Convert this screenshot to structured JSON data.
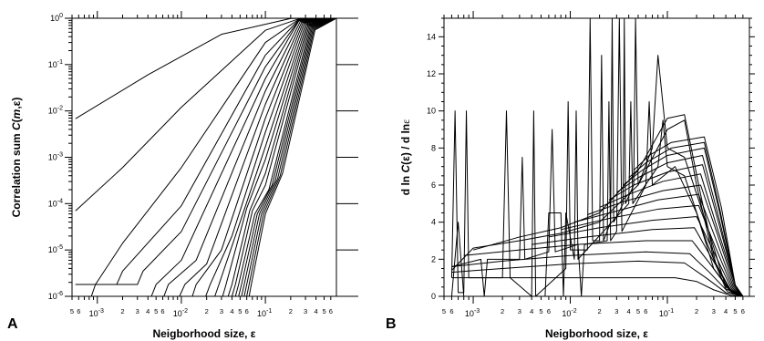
{
  "chart_data": [
    {
      "type": "line",
      "panel_label": "A",
      "xlabel": "Neigborhood size, ε",
      "ylabel": "Correlation sum C(m,ε)",
      "ylabel_parts": [
        "Correlation sum ",
        "C",
        "(",
        "m",
        ",ε)"
      ],
      "x_scale": "log",
      "y_scale": "log",
      "xlim": [
        0.0005,
        0.7
      ],
      "ylim": [
        1e-06,
        1
      ],
      "x_tick_labels": [
        {
          "value": 0.001,
          "base": "10",
          "exp": "-3"
        },
        {
          "value": 0.01,
          "base": "10",
          "exp": "-2"
        },
        {
          "value": 0.1,
          "base": "10",
          "exp": "-1"
        }
      ],
      "x_minor_labels": [
        "2",
        "3",
        "4",
        "5",
        "6"
      ],
      "y_tick_labels": [
        {
          "value": 1e-06,
          "base": "10",
          "exp": "-6"
        },
        {
          "value": 1e-05,
          "base": "10",
          "exp": "-5"
        },
        {
          "value": 0.0001,
          "base": "10",
          "exp": "-4"
        },
        {
          "value": 0.001,
          "base": "10",
          "exp": "-3"
        },
        {
          "value": 0.01,
          "base": "10",
          "exp": "-2"
        },
        {
          "value": 0.1,
          "base": "10",
          "exp": "-1"
        },
        {
          "value": 1,
          "base": "10",
          "exp": "0"
        }
      ],
      "grid": false,
      "curves_note": "20 correlation-sum curves for embedding dimensions m = 1..20; estimated anchor points in data units",
      "series": [
        {
          "x": [
            0.00055,
            0.004,
            0.03,
            0.2,
            0.7
          ],
          "y": [
            0.0068,
            0.06,
            0.45,
            0.99,
            1
          ]
        },
        {
          "x": [
            0.00055,
            0.002,
            0.01,
            0.1,
            0.25,
            0.7
          ],
          "y": [
            7e-05,
            0.0006,
            0.012,
            0.55,
            0.97,
            1
          ]
        },
        {
          "x": [
            0.00055,
            0.00085,
            0.00095,
            0.002,
            0.01,
            0.1,
            0.25,
            0.7
          ],
          "y": [
            1e-06,
            1e-06,
            1.8e-06,
            1.4e-05,
            0.0006,
            0.3,
            0.95,
            1
          ]
        },
        {
          "x": [
            0.00055,
            0.0017,
            0.002,
            0.01,
            0.1,
            0.25,
            0.7
          ],
          "y": [
            1.8e-06,
            1.8e-06,
            3.5e-06,
            9e-05,
            0.16,
            0.93,
            1
          ]
        },
        {
          "x": [
            0.00055,
            0.003,
            0.0035,
            0.01,
            0.1,
            0.25,
            0.7
          ],
          "y": [
            1.8e-06,
            1.8e-06,
            3.5e-06,
            2.5e-05,
            0.09,
            0.9,
            1
          ]
        },
        {
          "x": [
            0.0044,
            0.005,
            0.01,
            0.1,
            0.25,
            0.7
          ],
          "y": [
            1e-06,
            1.8e-06,
            6e-06,
            0.05,
            0.88,
            1
          ]
        },
        {
          "x": [
            0.0062,
            0.007,
            0.015,
            0.1,
            0.26,
            0.7
          ],
          "y": [
            1e-06,
            1.8e-06,
            6e-06,
            0.027,
            0.85,
            1
          ]
        },
        {
          "x": [
            0.0095,
            0.011,
            0.02,
            0.1,
            0.27,
            0.7
          ],
          "y": [
            1e-06,
            1.8e-06,
            5e-06,
            0.014,
            0.82,
            1
          ]
        },
        {
          "x": [
            0.0135,
            0.015,
            0.03,
            0.1,
            0.28,
            0.7
          ],
          "y": [
            1e-06,
            1.8e-06,
            1e-05,
            0.007,
            0.8,
            1
          ]
        },
        {
          "x": [
            0.0195,
            0.022,
            0.04,
            0.1,
            0.29,
            0.7
          ],
          "y": [
            1e-06,
            1.8e-06,
            2e-05,
            0.0035,
            0.78,
            1
          ]
        },
        {
          "x": [
            0.025,
            0.028,
            0.05,
            0.1,
            0.3,
            0.7
          ],
          "y": [
            1e-06,
            1.8e-06,
            4e-05,
            0.0017,
            0.75,
            1
          ]
        },
        {
          "x": [
            0.031,
            0.034,
            0.06,
            0.1,
            0.31,
            0.7
          ],
          "y": [
            1e-06,
            1.8e-06,
            8e-05,
            0.0009,
            0.72,
            1
          ]
        },
        {
          "x": [
            0.036,
            0.04,
            0.065,
            0.1,
            0.32,
            0.7
          ],
          "y": [
            1e-06,
            1.8e-06,
            7e-05,
            0.00045,
            0.7,
            1
          ]
        },
        {
          "x": [
            0.04,
            0.044,
            0.07,
            0.1,
            0.33,
            0.7
          ],
          "y": [
            1e-06,
            1.8e-06,
            7e-05,
            0.00025,
            0.68,
            1
          ]
        },
        {
          "x": [
            0.044,
            0.048,
            0.075,
            0.11,
            0.34,
            0.7
          ],
          "y": [
            1e-06,
            1.8e-06,
            6e-05,
            0.0002,
            0.66,
            1
          ]
        },
        {
          "x": [
            0.048,
            0.052,
            0.08,
            0.12,
            0.35,
            0.7
          ],
          "y": [
            1e-06,
            1.8e-06,
            6e-05,
            0.00025,
            0.64,
            1
          ]
        },
        {
          "x": [
            0.052,
            0.056,
            0.085,
            0.13,
            0.36,
            0.7
          ],
          "y": [
            1e-06,
            1.8e-06,
            6e-05,
            0.0003,
            0.62,
            1
          ]
        },
        {
          "x": [
            0.056,
            0.06,
            0.09,
            0.14,
            0.37,
            0.7
          ],
          "y": [
            1e-06,
            1.8e-06,
            6e-05,
            0.00035,
            0.6,
            1
          ]
        },
        {
          "x": [
            0.06,
            0.064,
            0.095,
            0.15,
            0.38,
            0.7
          ],
          "y": [
            1e-06,
            1.8e-06,
            6e-05,
            0.0004,
            0.58,
            1
          ]
        },
        {
          "x": [
            0.064,
            0.068,
            0.1,
            0.16,
            0.39,
            0.7
          ],
          "y": [
            1e-06,
            1.8e-06,
            6e-05,
            0.00045,
            0.56,
            1
          ]
        }
      ]
    },
    {
      "type": "line",
      "panel_label": "B",
      "xlabel": "Neigborhood size, ε",
      "ylabel": "d ln C(ε) / d ln ε",
      "ylabel_parts": [
        "d ln ",
        "C",
        "(ε) / d ln",
        "ε"
      ],
      "x_scale": "log",
      "y_scale": "linear",
      "xlim": [
        0.0005,
        0.7
      ],
      "ylim": [
        0,
        15
      ],
      "x_tick_labels": [
        {
          "value": 0.001,
          "base": "10",
          "exp": "-3"
        },
        {
          "value": 0.01,
          "base": "10",
          "exp": "-2"
        },
        {
          "value": 0.1,
          "base": "10",
          "exp": "-1"
        }
      ],
      "x_minor_labels": [
        "2",
        "3",
        "4",
        "5",
        "6"
      ],
      "y_tick_labels": [
        "0",
        "2",
        "4",
        "6",
        "8",
        "10",
        "12",
        "14"
      ],
      "grid": false,
      "curves_note": "20 local-slope curves; smooth envelopes estimated plus noisy spike traces",
      "series": [
        {
          "x": [
            0.0006,
            0.001,
            0.01,
            0.05,
            0.12,
            0.2,
            0.3,
            0.45,
            0.6
          ],
          "y": [
            1.0,
            1.0,
            1.0,
            1.0,
            1.0,
            0.8,
            0.35,
            0.05,
            0.0
          ]
        },
        {
          "x": [
            0.0006,
            0.002,
            0.01,
            0.05,
            0.15,
            0.25,
            0.4,
            0.6
          ],
          "y": [
            1.3,
            1.5,
            1.75,
            1.9,
            1.8,
            1.0,
            0.2,
            0.0
          ]
        },
        {
          "x": [
            0.0006,
            0.002,
            0.01,
            0.06,
            0.17,
            0.27,
            0.42,
            0.6
          ],
          "y": [
            1.6,
            1.9,
            2.2,
            2.4,
            2.3,
            1.3,
            0.25,
            0.0
          ]
        },
        {
          "x": [
            0.0008,
            0.003,
            0.012,
            0.06,
            0.18,
            0.28,
            0.44,
            0.6
          ],
          "y": [
            2.2,
            2.5,
            2.8,
            3.0,
            3.0,
            1.7,
            0.3,
            0.0
          ]
        },
        {
          "x": [
            0.004,
            0.015,
            0.07,
            0.19,
            0.29,
            0.45,
            0.6
          ],
          "y": [
            2.8,
            3.2,
            3.6,
            3.7,
            2.0,
            0.35,
            0.0
          ]
        },
        {
          "x": [
            0.006,
            0.02,
            0.07,
            0.2,
            0.3,
            0.46,
            0.6
          ],
          "y": [
            3.2,
            3.7,
            4.1,
            4.3,
            2.4,
            0.4,
            0.0
          ]
        },
        {
          "x": [
            0.008,
            0.025,
            0.08,
            0.21,
            0.31,
            0.47,
            0.6
          ],
          "y": [
            3.6,
            4.2,
            4.7,
            4.9,
            2.7,
            0.45,
            0.0
          ]
        },
        {
          "x": [
            0.011,
            0.03,
            0.08,
            0.21,
            0.32,
            0.48,
            0.6
          ],
          "y": [
            4.0,
            4.6,
            5.2,
            5.5,
            3.0,
            0.5,
            0.0
          ]
        },
        {
          "x": [
            0.015,
            0.035,
            0.09,
            0.22,
            0.33,
            0.49,
            0.6
          ],
          "y": [
            4.4,
            5.1,
            5.7,
            6.0,
            3.3,
            0.55,
            0.0
          ]
        },
        {
          "x": [
            0.02,
            0.04,
            0.09,
            0.22,
            0.33,
            0.5,
            0.6
          ],
          "y": [
            4.8,
            5.5,
            6.2,
            6.6,
            3.6,
            0.6,
            0.0
          ]
        },
        {
          "x": [
            0.025,
            0.045,
            0.1,
            0.23,
            0.34,
            0.5,
            0.6
          ],
          "y": [
            5.2,
            6.0,
            6.7,
            7.1,
            3.9,
            0.6,
            0.0
          ]
        },
        {
          "x": [
            0.03,
            0.05,
            0.1,
            0.23,
            0.34,
            0.5,
            0.6
          ],
          "y": [
            5.6,
            6.4,
            7.2,
            7.6,
            4.2,
            0.6,
            0.0
          ]
        },
        {
          "x": [
            0.035,
            0.055,
            0.1,
            0.24,
            0.35,
            0.5,
            0.6
          ],
          "y": [
            6.0,
            6.8,
            7.6,
            8.0,
            4.4,
            0.6,
            0.0
          ]
        },
        {
          "x": [
            0.04,
            0.06,
            0.11,
            0.24,
            0.35,
            0.5,
            0.6
          ],
          "y": [
            6.4,
            7.2,
            8.0,
            8.3,
            4.6,
            0.6,
            0.0
          ]
        },
        {
          "x": [
            0.045,
            0.065,
            0.11,
            0.24,
            0.36,
            0.5,
            0.6
          ],
          "y": [
            6.8,
            7.6,
            8.3,
            8.6,
            4.8,
            0.6,
            0.0
          ]
        },
        {
          "x": [
            0.0006,
            0.00065,
            0.0007,
            0.0008,
            0.00085,
            0.0009,
            0.002,
            0.0022,
            0.0024,
            0.004,
            0.0042,
            0.0044,
            0.009,
            0.0095,
            0.01,
            0.015,
            0.016,
            0.017,
            0.02,
            0.021,
            0.022,
            0.026,
            0.027,
            0.028,
            0.035,
            0.036,
            0.037,
            0.045,
            0.047,
            0.05,
            0.07,
            0.08,
            0.1,
            0.15,
            0.25,
            0.4,
            0.6
          ],
          "y": [
            1.0,
            10.0,
            0.2,
            0.2,
            10.0,
            1.0,
            1.0,
            10.0,
            1.0,
            0.0,
            10.0,
            0.0,
            1.5,
            10.5,
            2.5,
            2.5,
            15.0,
            3.0,
            3.0,
            13.0,
            3.0,
            4.0,
            15.0,
            4.0,
            5.0,
            15.0,
            5.0,
            6.0,
            15.0,
            6.0,
            8.0,
            13.0,
            8.0,
            7.5,
            4.0,
            0.5,
            0.0
          ]
        },
        {
          "x": [
            0.0006,
            0.0012,
            0.0013,
            0.0014,
            0.003,
            0.0032,
            0.0034,
            0.006,
            0.0065,
            0.007,
            0.012,
            0.013,
            0.014,
            0.024,
            0.025,
            0.026,
            0.03,
            0.032,
            0.034,
            0.06,
            0.065,
            0.07,
            0.12,
            0.2,
            0.3,
            0.45,
            0.6
          ],
          "y": [
            1.6,
            2.0,
            0.0,
            2.0,
            2.0,
            7.5,
            2.0,
            2.4,
            9.0,
            2.4,
            2.8,
            0.0,
            2.8,
            3.0,
            10.5,
            3.0,
            3.5,
            15.0,
            3.5,
            6.0,
            10.5,
            6.0,
            7.0,
            4.5,
            1.5,
            0.3,
            0.0
          ]
        },
        {
          "x": [
            0.0006,
            0.0007,
            0.0008,
            0.0009,
            0.005,
            0.0055,
            0.006,
            0.008,
            0.0085,
            0.009,
            0.011,
            0.0115,
            0.012,
            0.04,
            0.042,
            0.044,
            0.08,
            0.09,
            0.1,
            0.15,
            0.25,
            0.4,
            0.6
          ],
          "y": [
            0.0,
            4.0,
            0.0,
            0.0,
            0.0,
            0.0,
            4.5,
            4.5,
            0.0,
            4.5,
            2.0,
            10.0,
            2.0,
            5.0,
            10.5,
            5.0,
            7.0,
            9.5,
            7.0,
            6.5,
            3.0,
            0.4,
            0.0
          ]
        },
        {
          "x": [
            0.0006,
            0.001,
            0.003,
            0.008,
            0.02,
            0.05,
            0.1,
            0.15,
            0.2,
            0.3,
            0.45,
            0.6
          ],
          "y": [
            1.4,
            2.6,
            3.0,
            3.4,
            4.0,
            6.0,
            9.0,
            9.5,
            6.0,
            2.0,
            0.3,
            0.0
          ]
        },
        {
          "x": [
            0.001,
            0.003,
            0.008,
            0.02,
            0.05,
            0.1,
            0.15,
            0.22,
            0.32,
            0.46,
            0.6
          ],
          "y": [
            2.5,
            3.2,
            3.7,
            4.5,
            6.8,
            9.6,
            9.8,
            5.5,
            1.6,
            0.2,
            0.0
          ]
        }
      ]
    }
  ]
}
